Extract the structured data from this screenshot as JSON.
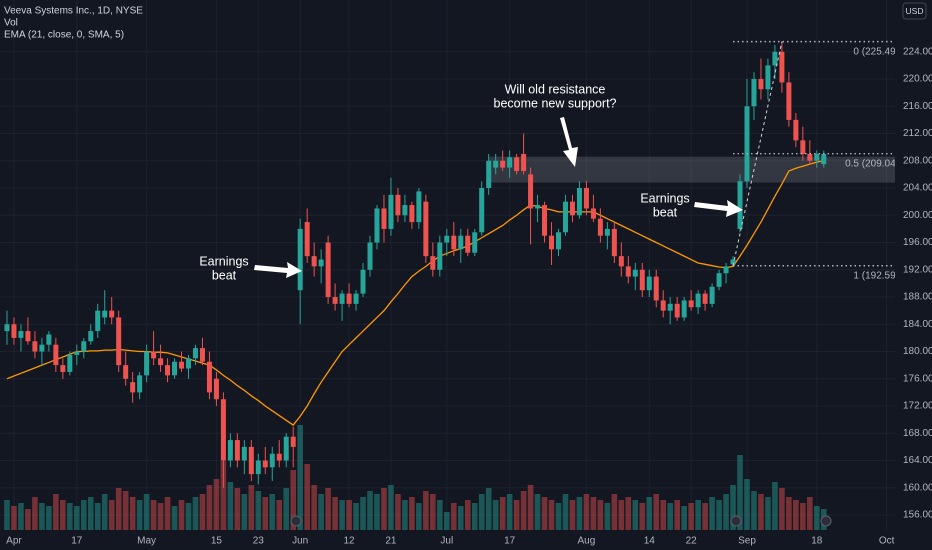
{
  "chart_data": {
    "type": "candlestick",
    "title": "Veeva Systems Inc., 1D, NYSE",
    "subtitles": [
      "Vol",
      "EMA (21, close, 0, SMA, 5)"
    ],
    "currency": "USD",
    "up_color": "#26a69a",
    "down_color": "#ef5350",
    "ema_color": "#ff9800",
    "grid": true,
    "xlim": [
      -1,
      127.2
    ],
    "xticks": [
      {
        "value": 1,
        "label": "Apr"
      },
      {
        "value": 10,
        "label": "17"
      },
      {
        "value": 20,
        "label": "May"
      },
      {
        "value": 30,
        "label": "15"
      },
      {
        "value": 36,
        "label": "23"
      },
      {
        "value": 42,
        "label": "Jun"
      },
      {
        "value": 49,
        "label": "12"
      },
      {
        "value": 55,
        "label": "21"
      },
      {
        "value": 63,
        "label": "Jul"
      },
      {
        "value": 72,
        "label": "17"
      },
      {
        "value": 83,
        "label": "Aug"
      },
      {
        "value": 92,
        "label": "14"
      },
      {
        "value": 98,
        "label": "22"
      },
      {
        "value": 106,
        "label": "Sep"
      },
      {
        "value": 116,
        "label": "18"
      },
      {
        "value": 126,
        "label": "Oct"
      }
    ],
    "ylim": [
      153.8,
      231.6
    ],
    "yticks": [
      {
        "value": 156,
        "label": "156.00"
      },
      {
        "value": 160,
        "label": "160.00"
      },
      {
        "value": 164,
        "label": "164.00"
      },
      {
        "value": 168,
        "label": "168.00"
      },
      {
        "value": 172,
        "label": "172.00"
      },
      {
        "value": 176,
        "label": "176.00"
      },
      {
        "value": 180,
        "label": "180.00"
      },
      {
        "value": 184,
        "label": "184.00"
      },
      {
        "value": 188,
        "label": "188.00"
      },
      {
        "value": 192,
        "label": "192.00"
      },
      {
        "value": 196,
        "label": "196.00"
      },
      {
        "value": 200,
        "label": "200.00"
      },
      {
        "value": 204,
        "label": "204.00"
      },
      {
        "value": 208,
        "label": "208.00"
      },
      {
        "value": 212,
        "label": "212.00"
      },
      {
        "value": 216,
        "label": "216.00"
      },
      {
        "value": 220,
        "label": "220.00"
      },
      {
        "value": 224,
        "label": "224.00"
      }
    ],
    "open": [
      183,
      184,
      182,
      183,
      181.5,
      180,
      181,
      181,
      178,
      177,
      179.5,
      180,
      181.5,
      183,
      185,
      186,
      185,
      178,
      175.5,
      174,
      176.5,
      180,
      179,
      178,
      176.5,
      178.5,
      177.5,
      179,
      180.5,
      178.5,
      176,
      173,
      164,
      167,
      164,
      166,
      162,
      164,
      163,
      165,
      164,
      167.5,
      189,
      199,
      194,
      192.5,
      196,
      188,
      187,
      188.5,
      187,
      188.5,
      192,
      196,
      201,
      198,
      203,
      200,
      201.5,
      199,
      202,
      194,
      192,
      196,
      197,
      195,
      197,
      194.5,
      197.5,
      204,
      207,
      208,
      207,
      208.5,
      209,
      206,
      201,
      201.5,
      197,
      195,
      197.5,
      202,
      200,
      204,
      201,
      199.5,
      197,
      198,
      194,
      192.5,
      191,
      192,
      189,
      191,
      187.5,
      186,
      187,
      185,
      187.5,
      186.5,
      188.5,
      187,
      189.5,
      191.5,
      192.8,
      198,
      205,
      216,
      220,
      218.5,
      222,
      224,
      219.5,
      214,
      211,
      209,
      208,
      207.5
    ],
    "high": [
      186,
      185,
      184,
      185,
      183,
      182,
      183,
      182,
      179,
      180,
      181,
      182,
      184,
      187,
      189,
      188,
      186,
      180,
      177,
      177,
      181,
      183,
      181,
      179,
      179,
      180,
      179.5,
      181,
      182,
      180,
      177,
      174,
      168,
      168,
      167,
      167,
      165,
      166,
      166,
      167,
      168,
      169,
      199.5,
      201,
      196,
      195,
      197,
      190,
      189,
      190,
      189,
      193,
      197,
      201.5,
      203,
      205.5,
      204,
      203,
      202,
      204,
      203,
      196,
      197,
      198,
      199,
      198,
      198,
      198,
      205,
      209,
      209,
      209.5,
      209.5,
      209,
      212,
      207,
      203,
      202,
      199,
      198,
      203,
      203,
      205,
      205,
      203,
      201,
      199,
      199,
      196,
      194,
      193,
      193,
      192,
      192,
      189,
      188,
      188,
      188,
      189,
      189,
      189,
      190,
      192,
      193,
      194,
      206,
      220,
      221,
      223,
      223,
      225,
      225.49,
      221,
      215,
      213,
      211,
      209.5,
      209.5
    ],
    "low": [
      181,
      181,
      180,
      181,
      179,
      178,
      180,
      177,
      176,
      176.5,
      178,
      179,
      181,
      182,
      184,
      184,
      177,
      175,
      172.5,
      173,
      175.5,
      178,
      177,
      175.5,
      176,
      177,
      176,
      178,
      178,
      173,
      172,
      160,
      163,
      163,
      162,
      161,
      160.5,
      162,
      161,
      163,
      163,
      163,
      184,
      193,
      191,
      190,
      187,
      186,
      184.5,
      186.5,
      186,
      188,
      191,
      195,
      196,
      197,
      199,
      199,
      198,
      198,
      193,
      191,
      191,
      194,
      194,
      193,
      194,
      194,
      197,
      203,
      206,
      206.5,
      205.5,
      206,
      206,
      195.7,
      199,
      196,
      192.7,
      194,
      197,
      199,
      199.5,
      200,
      199,
      196,
      195,
      193,
      191,
      190,
      189,
      188,
      188,
      186.5,
      185,
      184,
      184.5,
      184.5,
      186,
      185.5,
      186,
      186.5,
      189,
      190,
      192.59,
      197.5,
      204,
      214,
      217,
      217,
      220,
      218,
      213,
      210,
      208,
      207.5,
      207,
      207
    ],
    "close": [
      184,
      182,
      183,
      181.5,
      180,
      181,
      182.5,
      178,
      177,
      179.5,
      180,
      181.5,
      183,
      186,
      186,
      185,
      178,
      176,
      174,
      176.5,
      180,
      179,
      178,
      176.5,
      178.5,
      177.5,
      179,
      180.5,
      178.5,
      174,
      173,
      164,
      167,
      164,
      166,
      162,
      164,
      163,
      165,
      164,
      167.5,
      166,
      198,
      194,
      192.5,
      193.5,
      188,
      187,
      188.5,
      187,
      188.5,
      192,
      196,
      201,
      198,
      203,
      200,
      201.5,
      199,
      203.5,
      194,
      192,
      196,
      197,
      195,
      197,
      194.5,
      197.5,
      204,
      208,
      208,
      207,
      208.5,
      206.5,
      206.5,
      201,
      201.5,
      197,
      195,
      197.5,
      202,
      200,
      204,
      201,
      199.5,
      197,
      198,
      194,
      192.5,
      191,
      192,
      189,
      191,
      187.5,
      186,
      187,
      185,
      187.5,
      186.5,
      188.5,
      187,
      189.5,
      191.5,
      192.5,
      193.5,
      205,
      216,
      220,
      218.5,
      222,
      224,
      219.5,
      214,
      211,
      209,
      208,
      209,
      209
    ],
    "volume": [
      1.0,
      0.8,
      0.9,
      0.7,
      1.1,
      0.9,
      0.8,
      1.2,
      1.0,
      0.9,
      0.8,
      1.0,
      1.1,
      0.9,
      1.2,
      1.0,
      1.4,
      1.3,
      1.1,
      1.0,
      1.2,
      1.0,
      0.9,
      1.1,
      0.8,
      1.0,
      0.9,
      1.1,
      1.2,
      1.5,
      1.7,
      2.3,
      1.6,
      1.4,
      1.2,
      1.5,
      1.3,
      1.1,
      1.2,
      1.0,
      1.4,
      2.0,
      3.5,
      2.2,
      1.5,
      1.2,
      1.4,
      1.1,
      1.0,
      1.0,
      0.9,
      1.1,
      1.3,
      1.2,
      1.4,
      1.5,
      1.2,
      1.0,
      1.1,
      0.9,
      1.3,
      1.2,
      1.0,
      0.6,
      0.9,
      0.8,
      1.0,
      0.9,
      1.2,
      1.4,
      1.0,
      1.1,
      1.2,
      1.0,
      1.3,
      1.5,
      1.2,
      1.1,
      1.0,
      0.9,
      1.2,
      1.0,
      1.1,
      1.2,
      1.1,
      1.0,
      0.9,
      1.2,
      1.0,
      1.1,
      1.0,
      0.9,
      1.1,
      1.2,
      1.0,
      0.9,
      1.0,
      0.8,
      0.9,
      1.0,
      0.9,
      1.1,
      1.0,
      1.2,
      1.5,
      2.5,
      1.7,
      1.3,
      1.2,
      1.1,
      1.6,
      1.4,
      1.1,
      1.0,
      0.9,
      1.1,
      0.8,
      0.7
    ],
    "ema": [
      176,
      176.4,
      176.8,
      177.2,
      177.6,
      178,
      178.4,
      178.8,
      179.2,
      179.6,
      180,
      180,
      180.1,
      180.1,
      180.2,
      180.2,
      180.3,
      180.2,
      180.1,
      180,
      180,
      179.9,
      179.9,
      179.8,
      179.5,
      179.2,
      178.9,
      178.6,
      178.3,
      178,
      177.3,
      176.5,
      175.8,
      175,
      174.3,
      173.5,
      172.8,
      172,
      171.3,
      170.6,
      169.9,
      169.2,
      170.5,
      172,
      173.8,
      175.5,
      177,
      178.5,
      180,
      181,
      182,
      183,
      184,
      185,
      186,
      187.3,
      188.5,
      189.8,
      191,
      191.8,
      192.5,
      193.3,
      194,
      194.4,
      194.8,
      195.1,
      195.5,
      196.1,
      196.7,
      197.3,
      197.9,
      198.5,
      199.3,
      200,
      200.8,
      201.5,
      201.3,
      201,
      200.8,
      200.5,
      200.5,
      200.5,
      200.5,
      200.5,
      200.5,
      200,
      199.5,
      199,
      198.5,
      198,
      197.5,
      197,
      196.5,
      196,
      195.5,
      195,
      194.5,
      194,
      193.5,
      193,
      192.8,
      192.6,
      192.4,
      192.3,
      192.5,
      194,
      195.6,
      197.3,
      199,
      200.9,
      202.8,
      204.6,
      206.5,
      206.9,
      207.2,
      207.5,
      207.8,
      208
    ],
    "zone": {
      "from": 69,
      "low": 204.8,
      "high": 208.6
    },
    "fib": {
      "from": 104,
      "to": 111,
      "levels": [
        {
          "value": 225.49,
          "label": "0 (225.49)"
        },
        {
          "value": 209.04,
          "label": "0.5 (209.04)"
        },
        {
          "value": 192.59,
          "label": "1 (192.59)"
        }
      ]
    },
    "annotations": [
      [
        "Will old resistance",
        "become new support?"
      ],
      [
        "Earnings",
        "beat"
      ],
      [
        "Earnings",
        "beat"
      ]
    ]
  }
}
